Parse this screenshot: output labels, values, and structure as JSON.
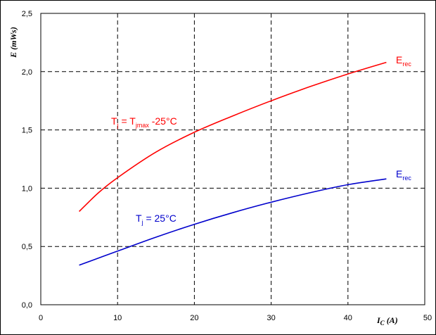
{
  "chart_data": {
    "type": "line",
    "title": "",
    "xlabel": {
      "main": "I",
      "sub": "C",
      "unit": " (A)"
    },
    "ylabel": "E (mWs)",
    "xlim": [
      0,
      50
    ],
    "ylim": [
      0,
      2.5
    ],
    "xticks": [
      0,
      10,
      20,
      30,
      40,
      50
    ],
    "yticks": [
      0.0,
      0.5,
      1.0,
      1.5,
      2.0,
      2.5
    ],
    "xtick_labels": [
      "0",
      "10",
      "20",
      "30",
      "40",
      "50"
    ],
    "ytick_labels": [
      "0,0",
      "0,5",
      "1,0",
      "1,5",
      "2,0",
      "2,5"
    ],
    "grid": true,
    "grid_style": "dashed",
    "series": [
      {
        "color": "#ff0000",
        "x": [
          5,
          7.5,
          10,
          15,
          20,
          25,
          30,
          35,
          40,
          45
        ],
        "y": [
          0.8,
          0.96,
          1.09,
          1.31,
          1.48,
          1.62,
          1.75,
          1.87,
          1.98,
          2.08
        ]
      },
      {
        "color": "#0000cc",
        "x": [
          5,
          7.5,
          10,
          15,
          20,
          25,
          30,
          35,
          40,
          45
        ],
        "y": [
          0.34,
          0.4,
          0.46,
          0.58,
          0.69,
          0.79,
          0.88,
          0.96,
          1.03,
          1.08
        ]
      }
    ],
    "annotations": [
      {
        "series": 0,
        "color": "#ff0000",
        "parts": [
          {
            "t": "T"
          },
          {
            "t": "j",
            "sub": true
          },
          {
            "t": " = T"
          },
          {
            "t": "jmax",
            "sub": true
          },
          {
            "t": " -25°C"
          }
        ]
      },
      {
        "series": 0,
        "color": "#ff0000",
        "parts": [
          {
            "t": "E"
          },
          {
            "t": "rec",
            "sub": true
          }
        ]
      },
      {
        "series": 1,
        "color": "#0000cc",
        "parts": [
          {
            "t": "T"
          },
          {
            "t": "j",
            "sub": true
          },
          {
            "t": " = 25°C"
          }
        ]
      },
      {
        "series": 1,
        "color": "#0000cc",
        "parts": [
          {
            "t": "E"
          },
          {
            "t": "rec",
            "sub": true
          }
        ]
      }
    ]
  }
}
